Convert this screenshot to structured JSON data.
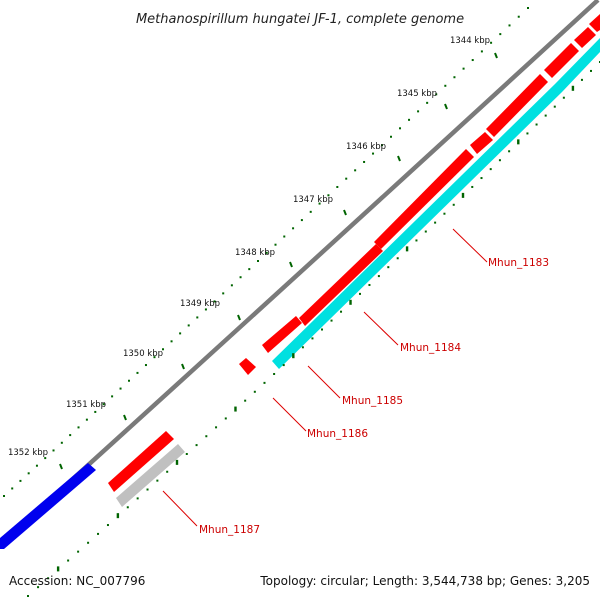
{
  "title": "Methanospirillum hungatei JF-1, complete genome",
  "footer": {
    "accession": "Accession: NC_007796",
    "summary": "Topology: circular; Length: 3,544,738 bp; Genes: 3,205"
  },
  "kbp_labels": [
    "1344 kbp",
    "1345 kbp",
    "1346 kbp",
    "1347 kbp",
    "1348 kbp",
    "1349 kbp",
    "1350 kbp",
    "1351 kbp",
    "1352 kbp"
  ],
  "gene_labels": [
    "Mhun_1183",
    "Mhun_1184",
    "Mhun_1185",
    "Mhun_1186",
    "Mhun_1187"
  ],
  "colors": {
    "cds_forward": "#ff0000",
    "cds_reverse": "#0000ee",
    "feature_cyan": "#00e5e5",
    "feature_gray": "#c0c0c0",
    "backbone": "#888888",
    "ticks": "#006400",
    "label_red": "#cc0000"
  }
}
